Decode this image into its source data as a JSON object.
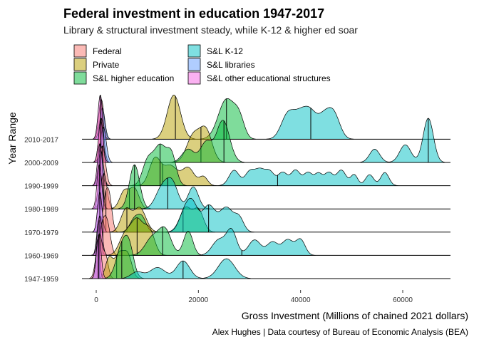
{
  "chart_data": {
    "type": "ridgeline",
    "title": "Federal investment in education 1947-2017",
    "subtitle": "Library & structural investment steady, while K-12 & higher ed soar",
    "xlabel": "Gross Investment (Millions of chained 2021 dollars)",
    "ylabel": "Year Range",
    "caption": "Alex Hughes | Data courtesy of Bureau of Economic Analysis (BEA)",
    "xlim": [
      -4000,
      69000
    ],
    "x_ticks": [
      0,
      20000,
      40000,
      60000
    ],
    "x_tick_labels": [
      "0",
      "20000",
      "40000",
      "60000"
    ],
    "categories": [
      "1947-1959",
      "1960-1969",
      "1970-1979",
      "1980-1989",
      "1990-1999",
      "2000-2009",
      "2010-2017"
    ],
    "legend_position": "top",
    "colors": {
      "Federal": "#F8766D",
      "Private": "#B79F00",
      "S&L higher education": "#00BA38",
      "S&L K-12": "#00BFC4",
      "S&L libraries": "#619CFF",
      "S&L other educational structures": "#F564E3"
    },
    "series": [
      {
        "name": "Federal",
        "ridges": [
          {
            "category": "1947-1959",
            "median": 600,
            "peaks": [
              [
                600,
                1.0,
                600
              ],
              [
                1900,
                0.45,
                500
              ]
            ]
          },
          {
            "category": "1960-1969",
            "median": 1300,
            "peaks": [
              [
                1300,
                0.7,
                700
              ],
              [
                2300,
                0.5,
                600
              ]
            ]
          },
          {
            "category": "1970-1979",
            "median": 1900,
            "peaks": [
              [
                1900,
                0.8,
                600
              ],
              [
                2700,
                0.5,
                500
              ]
            ]
          },
          {
            "category": "1980-1989",
            "median": 1500,
            "peaks": [
              [
                1500,
                0.8,
                600
              ]
            ]
          },
          {
            "category": "1990-1999",
            "median": 1200,
            "peaks": [
              [
                1200,
                0.9,
                600
              ]
            ]
          },
          {
            "category": "2000-2009",
            "median": 1000,
            "peaks": [
              [
                1000,
                1.0,
                500
              ]
            ]
          },
          {
            "category": "2010-2017",
            "median": 1000,
            "peaks": [
              [
                1000,
                0.9,
                500
              ]
            ]
          }
        ]
      },
      {
        "name": "Private",
        "ridges": [
          {
            "category": "1947-1959",
            "median": 4000,
            "peaks": [
              [
                2500,
                0.45,
                700
              ],
              [
                4500,
                0.55,
                900
              ],
              [
                6200,
                0.5,
                800
              ]
            ]
          },
          {
            "category": "1960-1969",
            "median": 8000,
            "peaks": [
              [
                5500,
                0.4,
                1100
              ],
              [
                8000,
                0.8,
                1300
              ],
              [
                10500,
                0.5,
                1000
              ]
            ]
          },
          {
            "category": "1970-1979",
            "median": 6000,
            "peaks": [
              [
                5800,
                0.5,
                1000
              ],
              [
                8500,
                0.55,
                1200
              ]
            ]
          },
          {
            "category": "1980-1989",
            "median": 6500,
            "peaks": [
              [
                5500,
                0.4,
                900
              ],
              [
                7500,
                0.45,
                900
              ]
            ]
          },
          {
            "category": "1990-1999",
            "median": 13000,
            "peaks": [
              [
                11500,
                0.6,
                1100
              ],
              [
                14500,
                0.45,
                1400
              ],
              [
                18000,
                0.4,
                1200
              ],
              [
                21000,
                0.2,
                800
              ]
            ]
          },
          {
            "category": "2000-2009",
            "median": 20500,
            "peaks": [
              [
                19000,
                0.6,
                1300
              ],
              [
                21500,
                0.7,
                1200
              ]
            ]
          },
          {
            "category": "2010-2017",
            "median": 15500,
            "peaks": [
              [
                15200,
                1.0,
                1300
              ]
            ]
          }
        ]
      },
      {
        "name": "S&L higher education",
        "ridges": [
          {
            "category": "1947-1959",
            "median": 5000,
            "peaks": [
              [
                5000,
                0.7,
                1100
              ],
              [
                6500,
                0.6,
                900
              ]
            ]
          },
          {
            "category": "1960-1969",
            "median": 13000,
            "peaks": [
              [
                11000,
                0.4,
                1400
              ],
              [
                13500,
                0.55,
                1200
              ],
              [
                18000,
                0.55,
                900
              ]
            ]
          },
          {
            "category": "1970-1979",
            "median": 17000,
            "peaks": [
              [
                7500,
                0.3,
                900
              ],
              [
                9000,
                0.3,
                800
              ],
              [
                17500,
                0.55,
                1100
              ],
              [
                20000,
                0.5,
                1000
              ]
            ]
          },
          {
            "category": "1980-1989",
            "median": 7500,
            "peaks": [
              [
                7500,
                1.0,
                1000
              ]
            ]
          },
          {
            "category": "1990-1999",
            "median": 12500,
            "peaks": [
              [
                10000,
                0.5,
                1000
              ],
              [
                12500,
                0.9,
                1300
              ],
              [
                14800,
                0.6,
                900
              ]
            ]
          },
          {
            "category": "2000-2009",
            "median": 25000,
            "peaks": [
              [
                18000,
                0.3,
                1200
              ],
              [
                21500,
                0.45,
                1100
              ],
              [
                24800,
                0.95,
                1300
              ]
            ]
          },
          {
            "category": "2010-2017",
            "median": 25500,
            "peaks": [
              [
                25500,
                0.9,
                1600
              ],
              [
                28000,
                0.4,
                1000
              ]
            ]
          }
        ]
      },
      {
        "name": "S&L K-12",
        "ridges": [
          {
            "category": "1947-1959",
            "median": 17000,
            "peaks": [
              [
                8000,
                0.15,
                1200
              ],
              [
                12000,
                0.25,
                1500
              ],
              [
                17000,
                0.4,
                1300
              ],
              [
                25500,
                0.45,
                1600
              ]
            ]
          },
          {
            "category": "1960-1969",
            "median": 28500,
            "peaks": [
              [
                24000,
                0.35,
                1300
              ],
              [
                26500,
                0.55,
                1000
              ],
              [
                31000,
                0.35,
                1200
              ],
              [
                34500,
                0.3,
                1100
              ],
              [
                37500,
                0.35,
                1100
              ],
              [
                40000,
                0.35,
                900
              ]
            ]
          },
          {
            "category": "1970-1979",
            "median": 22000,
            "peaks": [
              [
                17500,
                0.5,
                1200
              ],
              [
                19000,
                0.45,
                1000
              ],
              [
                22000,
                0.6,
                1300
              ],
              [
                25500,
                0.55,
                1300
              ],
              [
                28000,
                0.3,
                900
              ]
            ]
          },
          {
            "category": "1980-1989",
            "median": 14000,
            "peaks": [
              [
                13000,
                0.5,
                1300
              ],
              [
                15000,
                0.5,
                1100
              ],
              [
                19000,
                0.5,
                1000
              ]
            ]
          },
          {
            "category": "1990-1999",
            "median": 35500,
            "peaks": [
              [
                27000,
                0.35,
                1000
              ],
              [
                30000,
                0.3,
                900
              ],
              [
                32000,
                0.35,
                1000
              ],
              [
                34000,
                0.3,
                900
              ],
              [
                36500,
                0.3,
                900
              ],
              [
                39000,
                0.35,
                900
              ],
              [
                41500,
                0.3,
                900
              ],
              [
                43500,
                0.25,
                700
              ],
              [
                45500,
                0.3,
                900
              ],
              [
                48000,
                0.35,
                900
              ],
              [
                50500,
                0.25,
                700
              ],
              [
                53500,
                0.25,
                800
              ],
              [
                56500,
                0.3,
                800
              ]
            ]
          },
          {
            "category": "2000-2009",
            "median": 65000,
            "peaks": [
              [
                54500,
                0.3,
                1000
              ],
              [
                60500,
                0.4,
                1100
              ],
              [
                65000,
                1.0,
                1000
              ]
            ]
          },
          {
            "category": "2010-2017",
            "median": 42000,
            "peaks": [
              [
                37500,
                0.55,
                1300
              ],
              [
                40000,
                0.5,
                1300
              ],
              [
                42000,
                0.5,
                1200
              ],
              [
                44500,
                0.45,
                1200
              ],
              [
                46500,
                0.55,
                1200
              ]
            ]
          }
        ]
      },
      {
        "name": "S&L libraries",
        "ridges": [
          {
            "category": "1947-1959",
            "median": 300,
            "peaks": [
              [
                300,
                0.9,
                350
              ]
            ]
          },
          {
            "category": "1960-1969",
            "median": 500,
            "peaks": [
              [
                500,
                0.8,
                400
              ]
            ]
          },
          {
            "category": "1970-1979",
            "median": 700,
            "peaks": [
              [
                700,
                0.8,
                450
              ]
            ]
          },
          {
            "category": "1980-1989",
            "median": 800,
            "peaks": [
              [
                800,
                0.8,
                450
              ]
            ]
          },
          {
            "category": "1990-1999",
            "median": 900,
            "peaks": [
              [
                900,
                0.8,
                500
              ]
            ]
          },
          {
            "category": "2000-2009",
            "median": 1400,
            "peaks": [
              [
                1400,
                0.8,
                550
              ]
            ]
          },
          {
            "category": "2010-2017",
            "median": 1200,
            "peaks": [
              [
                1200,
                0.7,
                500
              ]
            ]
          }
        ]
      },
      {
        "name": "S&L other educational structures",
        "ridges": [
          {
            "category": "1947-1959",
            "median": 500,
            "peaks": [
              [
                500,
                1.0,
                450
              ]
            ]
          },
          {
            "category": "1960-1969",
            "median": 700,
            "peaks": [
              [
                700,
                0.9,
                450
              ]
            ]
          },
          {
            "category": "1970-1979",
            "median": 700,
            "peaks": [
              [
                700,
                0.9,
                450
              ]
            ]
          },
          {
            "category": "1980-1989",
            "median": 600,
            "peaks": [
              [
                600,
                1.0,
                450
              ]
            ]
          },
          {
            "category": "1990-1999",
            "median": 700,
            "peaks": [
              [
                700,
                0.95,
                450
              ]
            ]
          },
          {
            "category": "2000-2009",
            "median": 900,
            "peaks": [
              [
                900,
                0.95,
                450
              ]
            ]
          },
          {
            "category": "2010-2017",
            "median": 800,
            "peaks": [
              [
                800,
                1.0,
                450
              ]
            ]
          }
        ]
      }
    ]
  }
}
